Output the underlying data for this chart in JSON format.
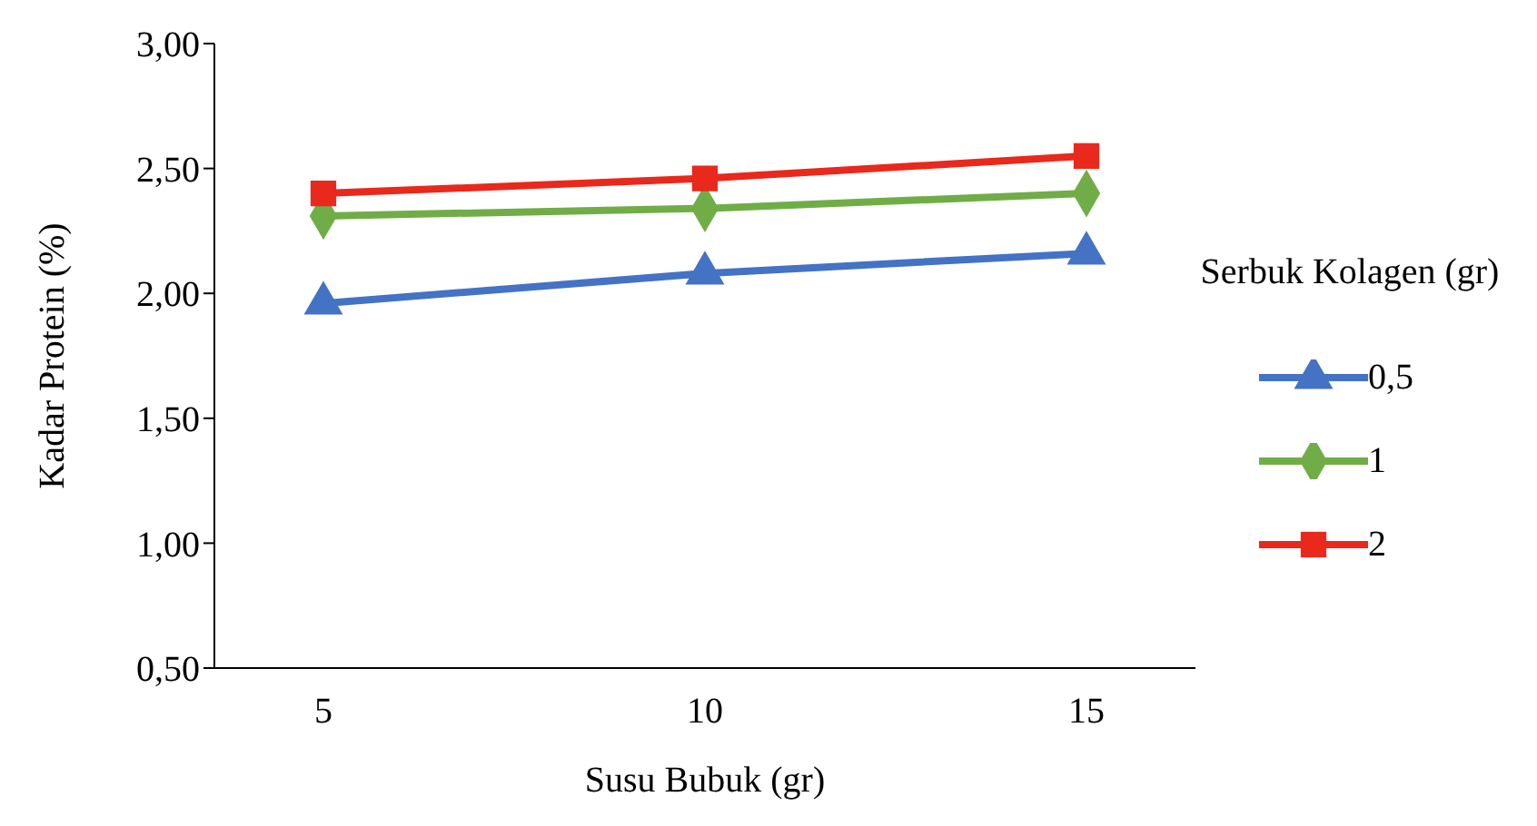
{
  "chart_data": {
    "type": "line",
    "xlabel": "Susu Bubuk (gr)",
    "ylabel": "Kadar Protein (%)",
    "legend_title": "Serbuk Kolagen (gr)",
    "categories": [
      "5",
      "10",
      "15"
    ],
    "series": [
      {
        "name": "0,5",
        "color": "#4472c4",
        "marker": "triangle",
        "values": [
          1.96,
          2.08,
          2.16
        ]
      },
      {
        "name": "1",
        "color": "#70ad47",
        "marker": "diamond",
        "values": [
          2.31,
          2.34,
          2.4
        ]
      },
      {
        "name": "2",
        "color": "#e8291c",
        "marker": "square",
        "values": [
          2.4,
          2.46,
          2.55
        ]
      }
    ],
    "ylim": [
      0.5,
      3
    ],
    "yticks": [
      {
        "value": 0.5,
        "label": "0,50"
      },
      {
        "value": 1,
        "label": "1,00"
      },
      {
        "value": 1.5,
        "label": "1,50"
      },
      {
        "value": 2,
        "label": "2,00"
      },
      {
        "value": 2.5,
        "label": "2,50"
      },
      {
        "value": 3,
        "label": "3,00"
      }
    ],
    "grid": false,
    "legend": "right",
    "line_style": "solid"
  }
}
